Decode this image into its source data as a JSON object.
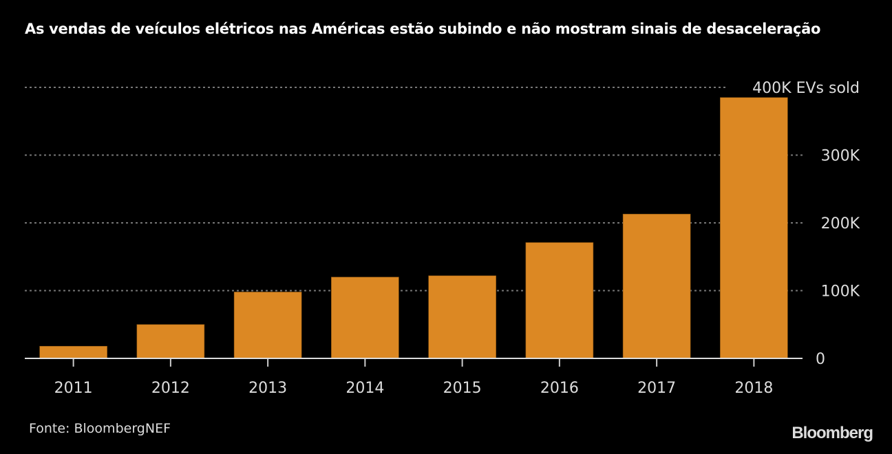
{
  "chart_data": {
    "type": "bar",
    "title": "As vendas de veículos elétricos nas Américas estão subindo e não mostram sinais de desaceleração",
    "xlabel": "",
    "ylabel": "EVs sold",
    "categories": [
      "2011",
      "2012",
      "2013",
      "2014",
      "2015",
      "2016",
      "2017",
      "2018"
    ],
    "values": [
      18000,
      50000,
      98000,
      120000,
      122000,
      171000,
      213000,
      385000
    ],
    "ylim": [
      0,
      400000
    ],
    "yticks": [
      0,
      100000,
      200000,
      300000,
      400000
    ],
    "ytick_labels": [
      "0",
      "100K",
      "200K",
      "300K",
      "400K EVs sold"
    ],
    "y_axis_position": "right",
    "grid": true,
    "bar_color": "#DC8823",
    "background_color": "#000000"
  },
  "source": "Fonte: BloombergNEF",
  "brand": "Bloomberg"
}
